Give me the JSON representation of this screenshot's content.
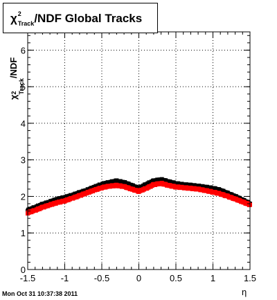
{
  "title": {
    "chi": "χ",
    "sup": "2",
    "sub": "Track",
    "rest": "/NDF  Global Tracks"
  },
  "ylabel": {
    "chi": "χ",
    "sup": "2",
    "sub": "Track",
    "rest": "/NDF"
  },
  "xlabel": "η",
  "timestamp": "Mon Oct 31 10:37:38 2011",
  "chart_data": {
    "type": "scatter",
    "title": "χ²_Track/NDF  Global Tracks",
    "xlabel": "η",
    "ylabel": "χ²_Track/NDF",
    "xlim": [
      -1.5,
      1.5
    ],
    "ylim": [
      0,
      6.5
    ],
    "grid": true,
    "x_ticks": [
      "-1.5",
      "-1",
      "-0.5",
      "0",
      "0.5",
      "1",
      "1.5"
    ],
    "y_ticks": [
      "0",
      "1",
      "2",
      "3",
      "4",
      "5",
      "6"
    ],
    "series": [
      {
        "color": "#000000",
        "x": [
          -1.5,
          -1.4,
          -1.3,
          -1.2,
          -1.1,
          -1.0,
          -0.9,
          -0.8,
          -0.7,
          -0.6,
          -0.5,
          -0.4,
          -0.3,
          -0.2,
          -0.1,
          0.0,
          0.1,
          0.2,
          0.3,
          0.4,
          0.5,
          0.6,
          0.7,
          0.8,
          0.9,
          1.0,
          1.1,
          1.2,
          1.3,
          1.4,
          1.5
        ],
        "y": [
          1.62,
          1.7,
          1.78,
          1.85,
          1.92,
          1.97,
          2.03,
          2.1,
          2.17,
          2.25,
          2.33,
          2.38,
          2.42,
          2.38,
          2.3,
          2.22,
          2.33,
          2.42,
          2.46,
          2.4,
          2.35,
          2.32,
          2.3,
          2.28,
          2.25,
          2.22,
          2.17,
          2.08,
          2.0,
          1.9,
          1.8
        ]
      },
      {
        "color": "#ff0000",
        "x": [
          -1.5,
          -1.4,
          -1.3,
          -1.2,
          -1.1,
          -1.0,
          -0.9,
          -0.8,
          -0.7,
          -0.6,
          -0.5,
          -0.4,
          -0.3,
          -0.2,
          -0.1,
          0.0,
          0.1,
          0.2,
          0.3,
          0.4,
          0.5,
          0.6,
          0.7,
          0.8,
          0.9,
          1.0,
          1.1,
          1.2,
          1.3,
          1.4,
          1.5
        ],
        "y": [
          1.55,
          1.62,
          1.7,
          1.77,
          1.83,
          1.88,
          1.95,
          2.02,
          2.1,
          2.17,
          2.24,
          2.28,
          2.3,
          2.27,
          2.2,
          2.14,
          2.22,
          2.32,
          2.36,
          2.3,
          2.26,
          2.24,
          2.22,
          2.2,
          2.16,
          2.12,
          2.07,
          2.0,
          1.93,
          1.85,
          1.77
        ]
      }
    ]
  }
}
